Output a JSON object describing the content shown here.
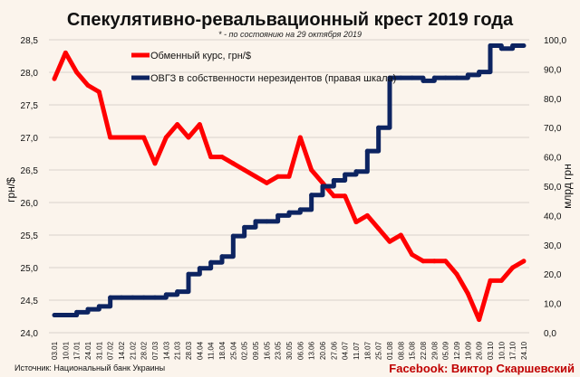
{
  "chart_data": {
    "type": "line",
    "title": "Спекулятивно-ревальвационный крест 2019 года",
    "subtitle": "* - по состоянию на 29 октября 2019",
    "ylabel_left": "грн/$",
    "ylabel_right": "млрд грн",
    "ylim_left": [
      24.0,
      28.5
    ],
    "ylim_right": [
      0,
      100
    ],
    "yticks_left": [
      "24,0",
      "24,5",
      "25,0",
      "25,5",
      "26,0",
      "26,5",
      "27,0",
      "27,5",
      "28,0",
      "28,5"
    ],
    "yticks_right": [
      "0,0",
      "10,0",
      "20,0",
      "30,0",
      "40,0",
      "50,0",
      "60,0",
      "70,0",
      "80,0",
      "90,0",
      "100,0"
    ],
    "grid": true,
    "legend_position": "top-left",
    "categories": [
      "03.01",
      "10.01",
      "17.01",
      "24.01",
      "31.01",
      "07.02",
      "14.02",
      "21.02",
      "28.02",
      "07.03",
      "14.03",
      "21.03",
      "28.03",
      "04.04",
      "11.04",
      "18.04",
      "25.04",
      "02.05",
      "09.05",
      "16.05",
      "23.05",
      "30.05",
      "06.06",
      "13.06",
      "20.06",
      "27.06",
      "04.07",
      "11.07",
      "18.07",
      "25.07",
      "01.08",
      "08.08",
      "15.08",
      "22.08",
      "29.08",
      "05.09",
      "12.09",
      "19.09",
      "26.09",
      "03.10",
      "10.10",
      "17.10",
      "24.10"
    ],
    "series": [
      {
        "name": "Обменный курс, грн/$",
        "axis": "left",
        "color": "#ff0000",
        "values": [
          27.9,
          28.3,
          28.0,
          27.8,
          27.7,
          27.0,
          27.0,
          27.0,
          27.0,
          26.6,
          27.0,
          27.2,
          27.0,
          27.2,
          26.7,
          26.7,
          26.6,
          26.5,
          26.4,
          26.3,
          26.4,
          26.4,
          27.0,
          26.5,
          26.3,
          26.1,
          26.1,
          25.7,
          25.8,
          25.6,
          25.4,
          25.5,
          25.2,
          25.1,
          25.1,
          25.1,
          24.9,
          24.6,
          24.2,
          24.8,
          24.8,
          25.0,
          25.1
        ]
      },
      {
        "name": "ОВГЗ в собственности  нерезидентов (правая шкала)",
        "axis": "right",
        "color": "#0d2461",
        "values": [
          6,
          6,
          7,
          8,
          9,
          12,
          12,
          12,
          12,
          12,
          13,
          14,
          20,
          22,
          24,
          26,
          33,
          36,
          38,
          38,
          40,
          41,
          42,
          47,
          50,
          52,
          54,
          55,
          62,
          70,
          87,
          87,
          87,
          86,
          87,
          87,
          87,
          88,
          89,
          98,
          97,
          98,
          98
        ]
      }
    ]
  },
  "footer": {
    "source": "Источник: Национальный банк Украины",
    "credit": "Facebook: Виктор Скаршевский"
  }
}
